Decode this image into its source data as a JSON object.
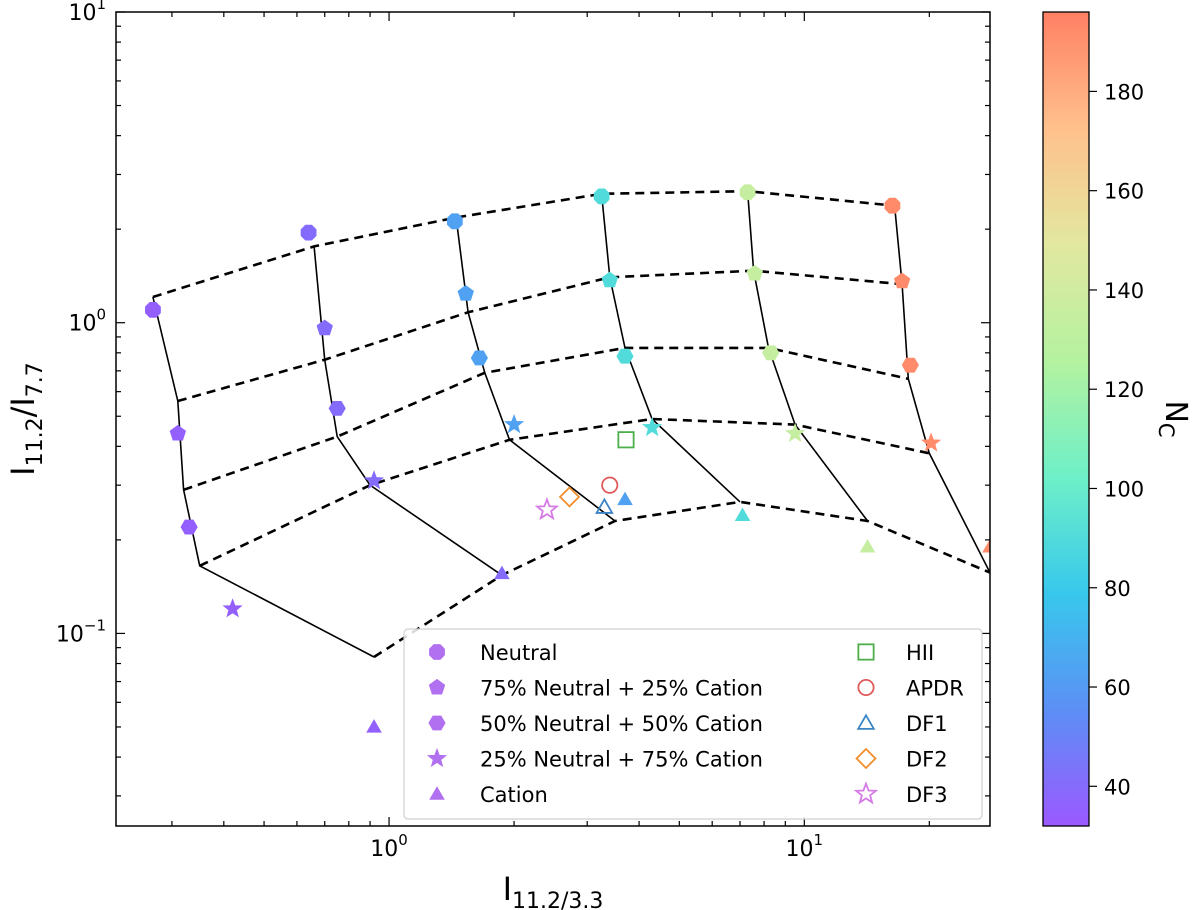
{
  "chart_data": {
    "type": "scatter",
    "xlabel": {
      "main": "I",
      "sub": "11.2/3.3",
      "mid": "/I"
    },
    "ylabel": {
      "main": "I",
      "sub1": "11.2",
      "mid": "/I",
      "sub2": "7.7"
    },
    "x_scale": "log",
    "y_scale": "log",
    "xlim": [
      0.22,
      28
    ],
    "ylim": [
      0.024,
      10
    ],
    "x_tick_labels": [
      {
        "value": 1,
        "base": "10",
        "exp": "0"
      },
      {
        "value": 10,
        "base": "10",
        "exp": "1"
      }
    ],
    "y_tick_labels": [
      {
        "value": 0.1,
        "base": "10",
        "exp": "−1"
      },
      {
        "value": 1,
        "base": "10",
        "exp": "0"
      },
      {
        "value": 10,
        "base": "10",
        "exp": "1"
      }
    ],
    "grid": false,
    "legend_position": "lower-right",
    "colorbar": {
      "label": {
        "main": "N",
        "sub": "C"
      },
      "range": [
        32,
        196
      ],
      "ticks": [
        40,
        60,
        80,
        100,
        120,
        140,
        160,
        180
      ],
      "tick_labels": [
        "40",
        "60",
        "80",
        "100",
        "120",
        "140",
        "160",
        "180"
      ],
      "colormap": [
        "#9b59ff",
        "#5c8ff5",
        "#38c8ec",
        "#6ef0c8",
        "#b4f2a0",
        "#e2e8a0",
        "#ffc08c",
        "#ff8064"
      ]
    },
    "grid_rows": [
      [
        [
          0.27,
          1.21
        ],
        [
          0.66,
          1.76
        ],
        [
          1.45,
          2.18
        ],
        [
          3.25,
          2.6
        ],
        [
          7.3,
          2.65
        ],
        [
          16.5,
          2.38
        ]
      ],
      [
        [
          0.31,
          0.56
        ],
        [
          0.7,
          0.76
        ],
        [
          1.55,
          1.08
        ],
        [
          3.4,
          1.4
        ],
        [
          7.55,
          1.47
        ],
        [
          17.2,
          1.33
        ]
      ],
      [
        [
          0.32,
          0.29
        ],
        [
          0.75,
          0.43
        ],
        [
          1.7,
          0.69
        ],
        [
          3.7,
          0.83
        ],
        [
          8.2,
          0.83
        ],
        [
          17.8,
          0.66
        ]
      ],
      [
        [
          0.35,
          0.165
        ],
        [
          0.9,
          0.3
        ],
        [
          1.95,
          0.42
        ],
        [
          4.3,
          0.49
        ],
        [
          9.5,
          0.47
        ],
        [
          20,
          0.38
        ]
      ],
      [
        [
          0.92,
          0.084
        ],
        [
          1.87,
          0.154
        ],
        [
          3.5,
          0.23
        ],
        [
          7,
          0.265
        ],
        [
          14.2,
          0.23
        ],
        [
          28,
          0.157
        ]
      ]
    ],
    "series": [
      {
        "name": "Neutral",
        "marker": "octagon",
        "points": [
          {
            "x": 0.27,
            "y": 1.1,
            "nc": 35
          },
          {
            "x": 0.64,
            "y": 1.95,
            "nc": 40
          },
          {
            "x": 1.44,
            "y": 2.12,
            "nc": 63
          },
          {
            "x": 3.25,
            "y": 2.55,
            "nc": 90
          },
          {
            "x": 7.3,
            "y": 2.63,
            "nc": 135
          },
          {
            "x": 16.3,
            "y": 2.38,
            "nc": 192
          }
        ]
      },
      {
        "name": "75% Neutral + 25% Cation",
        "marker": "pentagon",
        "points": [
          {
            "x": 0.31,
            "y": 0.44,
            "nc": 35
          },
          {
            "x": 0.7,
            "y": 0.96,
            "nc": 40
          },
          {
            "x": 1.53,
            "y": 1.24,
            "nc": 63
          },
          {
            "x": 3.4,
            "y": 1.37,
            "nc": 90
          },
          {
            "x": 7.6,
            "y": 1.44,
            "nc": 135
          },
          {
            "x": 17.2,
            "y": 1.36,
            "nc": 192
          }
        ]
      },
      {
        "name": "50% Neutral + 50% Cation",
        "marker": "hexagon",
        "points": [
          {
            "x": 0.33,
            "y": 0.22,
            "nc": 35
          },
          {
            "x": 0.75,
            "y": 0.53,
            "nc": 40
          },
          {
            "x": 1.65,
            "y": 0.77,
            "nc": 63
          },
          {
            "x": 3.7,
            "y": 0.78,
            "nc": 90
          },
          {
            "x": 8.3,
            "y": 0.8,
            "nc": 135
          },
          {
            "x": 18,
            "y": 0.73,
            "nc": 192
          }
        ]
      },
      {
        "name": "25% Neutral + 75% Cation",
        "marker": "star",
        "points": [
          {
            "x": 0.42,
            "y": 0.12,
            "nc": 35
          },
          {
            "x": 0.92,
            "y": 0.31,
            "nc": 40
          },
          {
            "x": 2,
            "y": 0.47,
            "nc": 63
          },
          {
            "x": 4.3,
            "y": 0.46,
            "nc": 90
          },
          {
            "x": 9.5,
            "y": 0.44,
            "nc": 135
          },
          {
            "x": 20.2,
            "y": 0.41,
            "nc": 192
          }
        ]
      },
      {
        "name": "Cation",
        "marker": "triangle",
        "points": [
          {
            "x": 0.92,
            "y": 0.05,
            "nc": 35
          },
          {
            "x": 1.87,
            "y": 0.156,
            "nc": 40
          },
          {
            "x": 3.7,
            "y": 0.27,
            "nc": 63
          },
          {
            "x": 7.1,
            "y": 0.24,
            "nc": 90
          },
          {
            "x": 14.2,
            "y": 0.19,
            "nc": 135
          },
          {
            "x": 28,
            "y": 0.19,
            "nc": 192
          }
        ]
      }
    ],
    "observations": [
      {
        "name": "HII",
        "marker": "square",
        "color": "#4daf4a",
        "x": 3.72,
        "y": 0.42
      },
      {
        "name": "APDR",
        "marker": "circle",
        "color": "#e05a5a",
        "x": 3.4,
        "y": 0.3
      },
      {
        "name": "DF1",
        "marker": "triangle",
        "color": "#3b84c4",
        "x": 3.3,
        "y": 0.255
      },
      {
        "name": "DF2",
        "marker": "diamond",
        "color": "#f28e2b",
        "x": 2.72,
        "y": 0.275
      },
      {
        "name": "DF3",
        "marker": "star",
        "color": "#d67be6",
        "x": 2.4,
        "y": 0.25
      }
    ],
    "legend_marker_color": "#b070f0"
  }
}
